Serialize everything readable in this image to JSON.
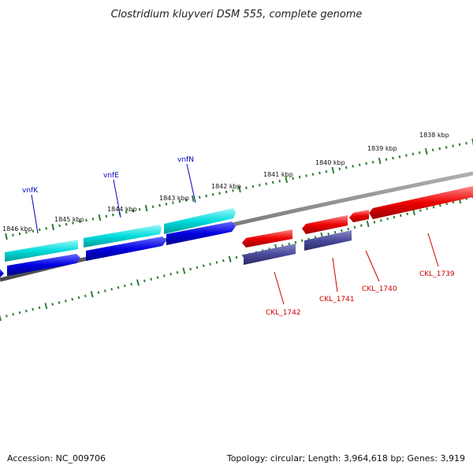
{
  "header": {
    "title": "Clostridium kluyveri DSM 555, complete genome"
  },
  "footer": {
    "accession": "Accession: NC_009706",
    "topology": "Topology: circular; Length: 3,964,618 bp; Genes: 3,919"
  },
  "colors": {
    "backbone": "#808080",
    "ticks": "#2e7d32",
    "gene_cyan": "#00dcdc",
    "gene_blue": "#0000e0",
    "gene_red": "#ee0000",
    "gene_slate": "#4a4a9a",
    "label_blue": "#0000c0",
    "label_red": "#cc0000"
  },
  "ticks": {
    "outer_labels": [
      "1846 kbp",
      "1845 kbp",
      "1844 kbp",
      "1843 kbp",
      "1842 kbp",
      "1841 kbp",
      "1840 kbp",
      "1839 kbp",
      "1838 kbp"
    ]
  },
  "genes": {
    "labels": [
      "vnfK",
      "vnfE",
      "vnfN",
      "CKL_1742",
      "CKL_1741",
      "CKL_1740",
      "CKL_1739"
    ]
  }
}
